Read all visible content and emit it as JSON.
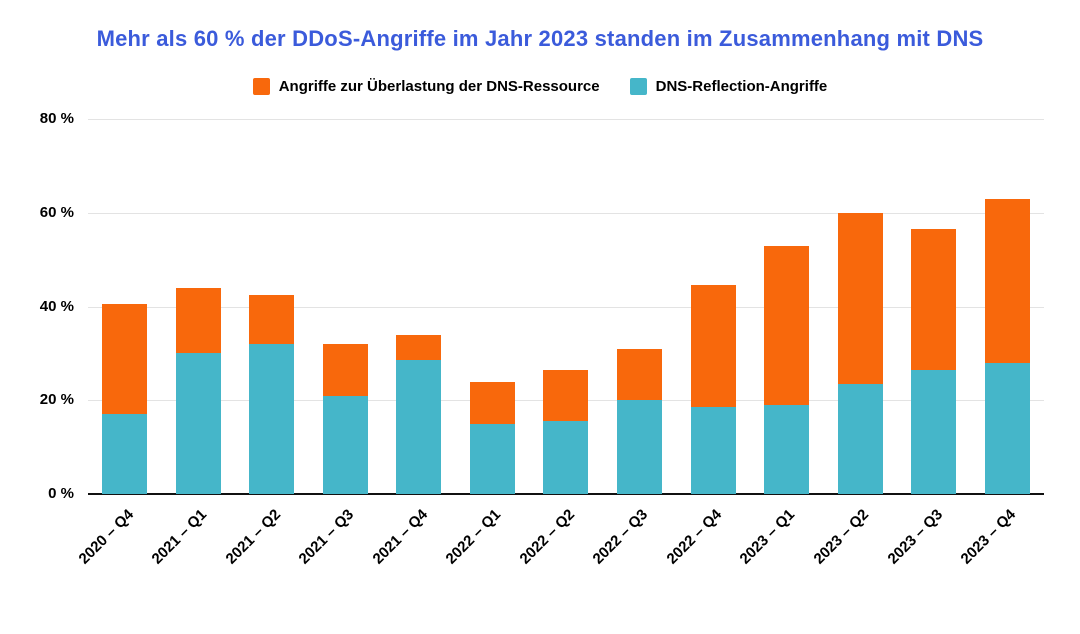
{
  "page": {
    "title": "Mehr als 60 % der DDoS-Angriffe im Jahr 2023 standen im Zusammenhang mit DNS"
  },
  "colors": {
    "title_blue": "#3B5BDB",
    "orange": "#F8680C",
    "teal": "#45B6C9",
    "gridline": "#E3E3E3",
    "baseline": "#111111",
    "text": "#000000"
  },
  "legend": {
    "items": [
      {
        "label": "Angriffe zur Überlastung der DNS-Ressource",
        "color": "#F8680C"
      },
      {
        "label": "DNS-Reflection-Angriffe",
        "color": "#45B6C9"
      }
    ]
  },
  "chart_data": {
    "type": "bar",
    "stacked": true,
    "title": "Mehr als 60 % der DDoS-Angriffe im Jahr 2023 standen im Zusammenhang mit DNS",
    "categories": [
      "2020 – Q4",
      "2021 – Q1",
      "2021 – Q2",
      "2021 – Q3",
      "2021 – Q4",
      "2022 – Q1",
      "2022 – Q2",
      "2022 – Q3",
      "2022 – Q4",
      "2023 – Q1",
      "2023 – Q2",
      "2023 – Q3",
      "2023 – Q4"
    ],
    "series": [
      {
        "name": "DNS-Reflection-Angriffe",
        "color": "#45B6C9",
        "values": [
          17,
          30,
          32,
          21,
          28.5,
          15,
          15.5,
          20,
          18.5,
          19,
          23.5,
          26.5,
          28
        ]
      },
      {
        "name": "Angriffe zur Überlastung der DNS-Ressource",
        "color": "#F8680C",
        "values": [
          23.5,
          14,
          10.5,
          11,
          5.5,
          9,
          11,
          11,
          26,
          34,
          36.5,
          30,
          35
        ]
      }
    ],
    "totals": [
      40.5,
      44,
      42.5,
      32,
      34,
      24,
      26.5,
      31,
      44.5,
      53,
      60,
      56.5,
      63
    ],
    "xlabel": "",
    "ylabel": "",
    "ylim": [
      0,
      80
    ],
    "yticks": [
      0,
      20,
      40,
      60,
      80
    ],
    "ytick_labels": [
      "0 %",
      "20 %",
      "40 %",
      "60 %",
      "80 %"
    ],
    "grid": true,
    "legend_position": "top"
  }
}
